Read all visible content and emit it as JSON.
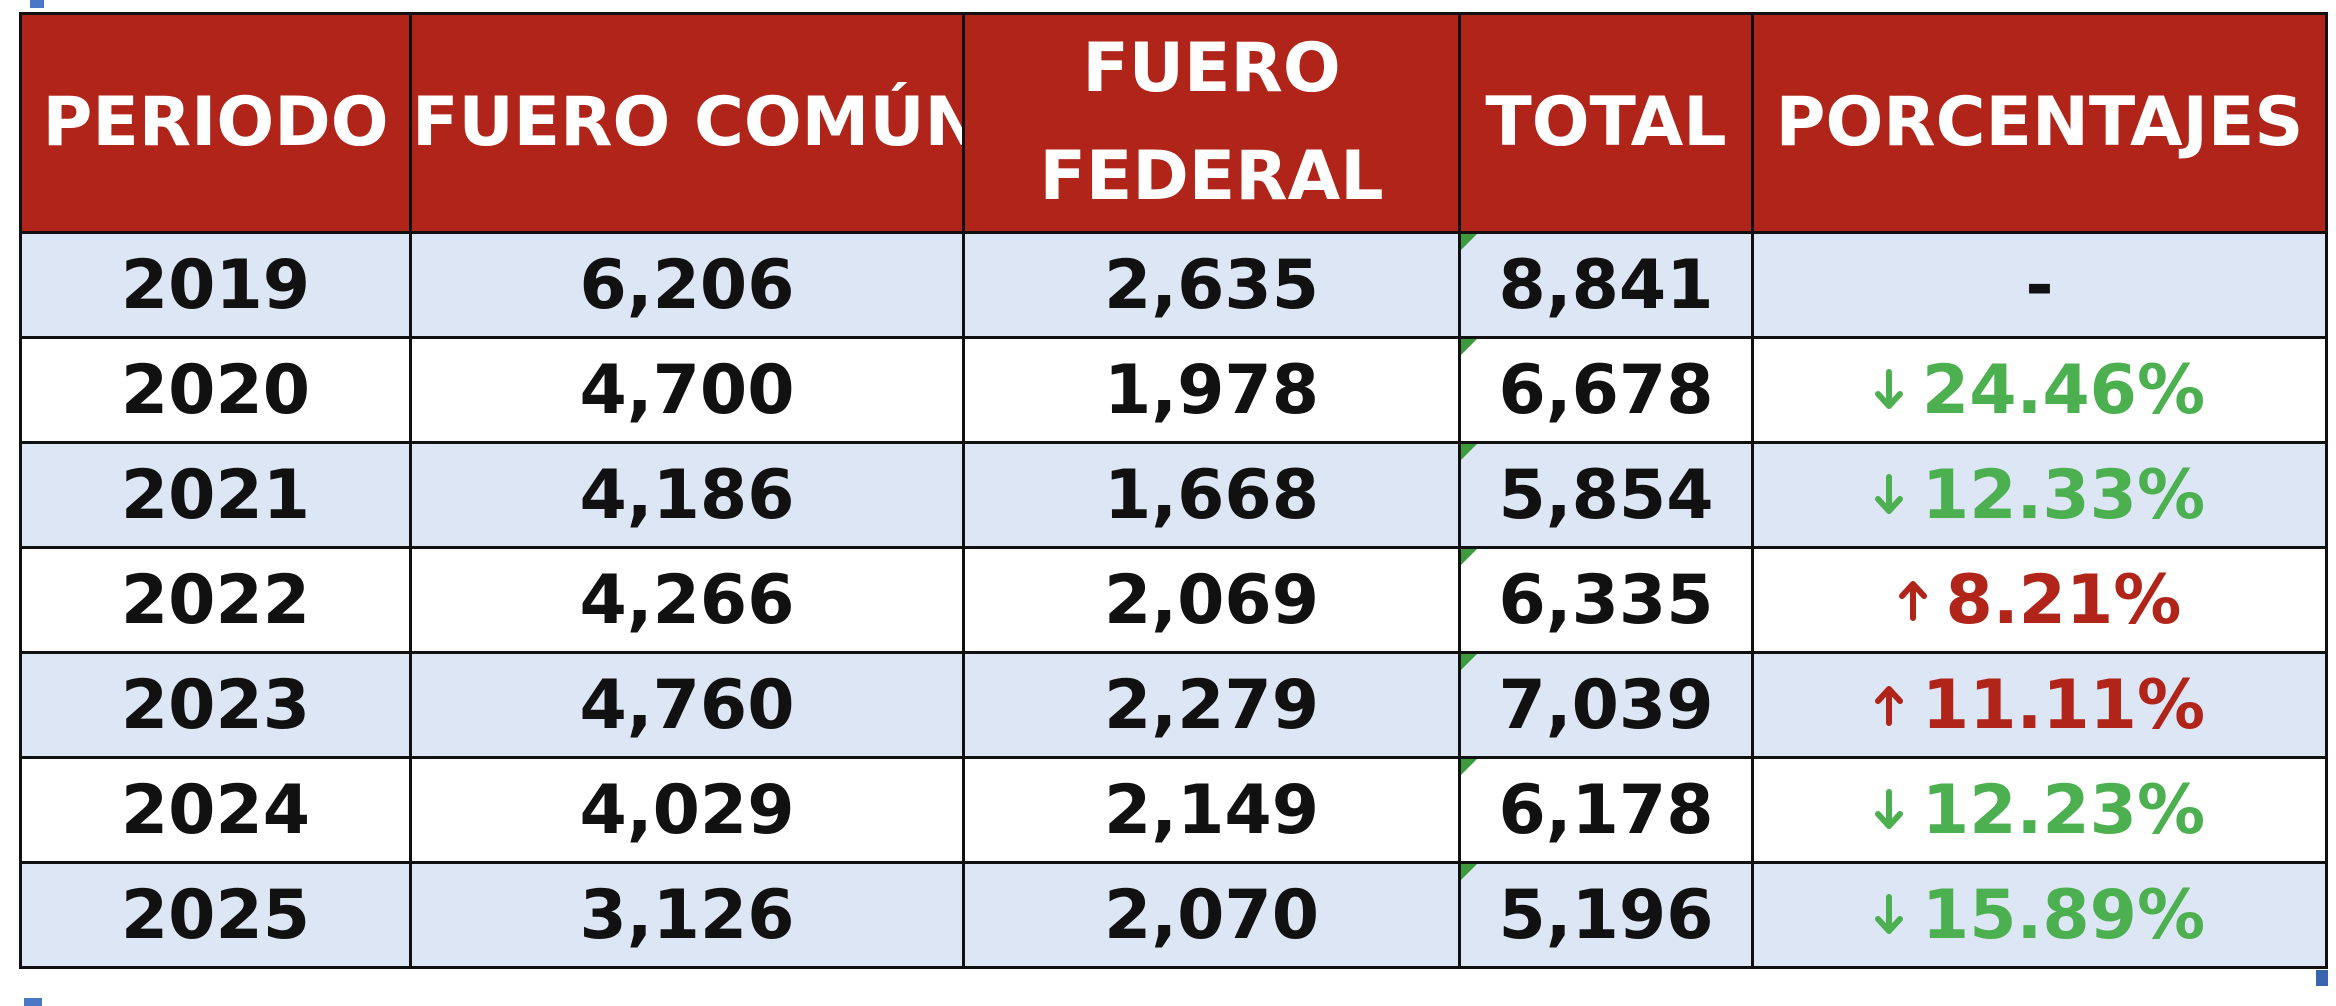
{
  "table": {
    "headers": {
      "periodo": "PERIODO",
      "fuero_comun": "FUERO COMÚN",
      "fuero_federal": "FUERO FEDERAL",
      "total": "TOTAL",
      "porcentajes": "PORCENTAJES"
    },
    "rows": [
      {
        "periodo": "2019",
        "fuero_comun": "6,206",
        "fuero_federal": "2,635",
        "total": "8,841",
        "porcentaje": "-",
        "trend": "none"
      },
      {
        "periodo": "2020",
        "fuero_comun": "4,700",
        "fuero_federal": "1,978",
        "total": "6,678",
        "porcentaje": "24.46%",
        "trend": "down"
      },
      {
        "periodo": "2021",
        "fuero_comun": "4,186",
        "fuero_federal": "1,668",
        "total": "5,854",
        "porcentaje": "12.33%",
        "trend": "down"
      },
      {
        "periodo": "2022",
        "fuero_comun": "4,266",
        "fuero_federal": "2,069",
        "total": "6,335",
        "porcentaje": "8.21%",
        "trend": "up"
      },
      {
        "periodo": "2023",
        "fuero_comun": "4,760",
        "fuero_federal": "2,279",
        "total": "7,039",
        "porcentaje": "11.11%",
        "trend": "up"
      },
      {
        "periodo": "2024",
        "fuero_comun": "4,029",
        "fuero_federal": "2,149",
        "total": "6,178",
        "porcentaje": "12.23%",
        "trend": "down"
      },
      {
        "periodo": "2025",
        "fuero_comun": "3,126",
        "fuero_federal": "2,070",
        "total": "5,196",
        "porcentaje": "15.89%",
        "trend": "down"
      }
    ]
  },
  "colors": {
    "header_bg": "#b0241a",
    "header_text": "#ffffff",
    "row_shaded": "#dde6f4",
    "row_plain": "#ffffff",
    "trend_down": "#4caf50",
    "trend_up": "#b0241a",
    "note_marker": "#3d9a3d"
  },
  "icons": {
    "down": "arrow-down-icon",
    "up": "arrow-up-icon",
    "total_cell": "comment-indicator-icon"
  }
}
